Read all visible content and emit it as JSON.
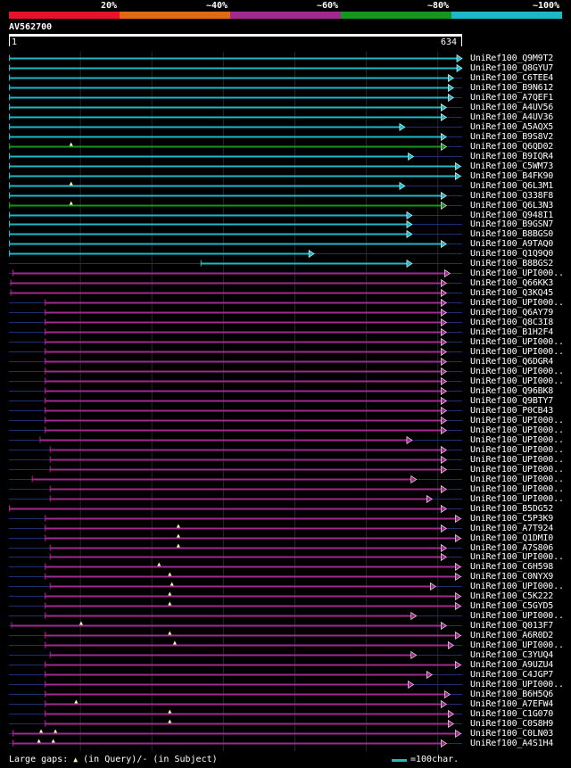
{
  "legend": {
    "bands": [
      {
        "label": "20%",
        "color": "#e8122d"
      },
      {
        "label": "~40%",
        "color": "#e06a13"
      },
      {
        "label": "~60%",
        "color": "#a2298e"
      },
      {
        "label": "~80%",
        "color": "#15971f"
      },
      {
        "label": "~100%",
        "color": "#1eb9c8"
      }
    ]
  },
  "query": {
    "id": "AV562700",
    "start_label": "1",
    "end_label": "634",
    "length": 634
  },
  "colors": {
    "cyan": "#1eb9c8",
    "green": "#15971f",
    "purple": "#a2298e",
    "gap_marker": "#ffffaa",
    "line": "#1c2f6e"
  },
  "hits": [
    {
      "name": "UniRef100_Q9M9T2",
      "color": "cyan",
      "start": 0,
      "end": 634,
      "gaps": []
    },
    {
      "name": "UniRef100_Q8GYU7",
      "color": "cyan",
      "start": 0,
      "end": 634,
      "gaps": []
    },
    {
      "name": "UniRef100_C6TEE4",
      "color": "cyan",
      "start": 0,
      "end": 622,
      "gaps": []
    },
    {
      "name": "UniRef100_B9N612",
      "color": "cyan",
      "start": 0,
      "end": 622,
      "gaps": []
    },
    {
      "name": "UniRef100_A7QEF1",
      "color": "cyan",
      "start": 0,
      "end": 622,
      "gaps": []
    },
    {
      "name": "UniRef100_A4UV56",
      "color": "cyan",
      "start": 0,
      "end": 612,
      "gaps": []
    },
    {
      "name": "UniRef100_A4UV36",
      "color": "cyan",
      "start": 0,
      "end": 612,
      "gaps": []
    },
    {
      "name": "UniRef100_A5AQX5",
      "color": "cyan",
      "start": 0,
      "end": 554,
      "gaps": []
    },
    {
      "name": "UniRef100_B9S8V2",
      "color": "cyan",
      "start": 0,
      "end": 612,
      "gaps": []
    },
    {
      "name": "UniRef100_Q6QD02",
      "color": "green",
      "start": 0,
      "end": 612,
      "gaps": [
        87
      ]
    },
    {
      "name": "UniRef100_B9IQR4",
      "color": "cyan",
      "start": 0,
      "end": 566,
      "gaps": []
    },
    {
      "name": "UniRef100_C5WM73",
      "color": "cyan",
      "start": 0,
      "end": 632,
      "gaps": []
    },
    {
      "name": "UniRef100_B4FK90",
      "color": "cyan",
      "start": 0,
      "end": 632,
      "gaps": []
    },
    {
      "name": "UniRef100_Q6L3M1",
      "color": "cyan",
      "start": 0,
      "end": 554,
      "gaps": [
        87
      ]
    },
    {
      "name": "UniRef100_Q338F8",
      "color": "cyan",
      "start": 0,
      "end": 612,
      "gaps": []
    },
    {
      "name": "UniRef100_Q6L3N3",
      "color": "green",
      "start": 0,
      "end": 612,
      "gaps": [
        87
      ]
    },
    {
      "name": "UniRef100_Q948I1",
      "color": "cyan",
      "start": 0,
      "end": 564,
      "gaps": []
    },
    {
      "name": "UniRef100_B9GSN7",
      "color": "cyan",
      "start": 0,
      "end": 564,
      "gaps": []
    },
    {
      "name": "UniRef100_B8BGS0",
      "color": "cyan",
      "start": 0,
      "end": 564,
      "gaps": []
    },
    {
      "name": "UniRef100_A9TAQ0",
      "color": "cyan",
      "start": 0,
      "end": 612,
      "gaps": []
    },
    {
      "name": "UniRef100_Q1Q9Q0",
      "color": "cyan",
      "start": 0,
      "end": 427,
      "gaps": []
    },
    {
      "name": "UniRef100_B8BGS2",
      "color": "cyan",
      "start": 268,
      "end": 564,
      "gaps": []
    },
    {
      "name": "UniRef100_UPI000..",
      "color": "purple",
      "start": 5,
      "end": 617,
      "gaps": []
    },
    {
      "name": "UniRef100_Q66KK3",
      "color": "purple",
      "start": 2,
      "end": 612,
      "gaps": []
    },
    {
      "name": "UniRef100_Q3KQ45",
      "color": "purple",
      "start": 2,
      "end": 612,
      "gaps": []
    },
    {
      "name": "UniRef100_UPI000..",
      "color": "purple",
      "start": 50,
      "end": 612,
      "gaps": []
    },
    {
      "name": "UniRef100_Q6AY79",
      "color": "purple",
      "start": 50,
      "end": 612,
      "gaps": []
    },
    {
      "name": "UniRef100_Q8C3I8",
      "color": "purple",
      "start": 50,
      "end": 612,
      "gaps": []
    },
    {
      "name": "UniRef100_B1H2F4",
      "color": "purple",
      "start": 50,
      "end": 612,
      "gaps": []
    },
    {
      "name": "UniRef100_UPI000..",
      "color": "purple",
      "start": 50,
      "end": 612,
      "gaps": []
    },
    {
      "name": "UniRef100_UPI000..",
      "color": "purple",
      "start": 50,
      "end": 612,
      "gaps": []
    },
    {
      "name": "UniRef100_Q6DGR4",
      "color": "purple",
      "start": 50,
      "end": 612,
      "gaps": []
    },
    {
      "name": "UniRef100_UPI000..",
      "color": "purple",
      "start": 50,
      "end": 612,
      "gaps": []
    },
    {
      "name": "UniRef100_UPI000..",
      "color": "purple",
      "start": 50,
      "end": 612,
      "gaps": []
    },
    {
      "name": "UniRef100_Q96BK8",
      "color": "purple",
      "start": 50,
      "end": 612,
      "gaps": []
    },
    {
      "name": "UniRef100_Q9BTY7",
      "color": "purple",
      "start": 50,
      "end": 612,
      "gaps": []
    },
    {
      "name": "UniRef100_P0CB43",
      "color": "purple",
      "start": 50,
      "end": 612,
      "gaps": []
    },
    {
      "name": "UniRef100_UPI000..",
      "color": "purple",
      "start": 50,
      "end": 612,
      "gaps": []
    },
    {
      "name": "UniRef100_UPI000..",
      "color": "purple",
      "start": 50,
      "end": 612,
      "gaps": []
    },
    {
      "name": "UniRef100_UPI000..",
      "color": "purple",
      "start": 43,
      "end": 564,
      "gaps": []
    },
    {
      "name": "UniRef100_UPI000..",
      "color": "purple",
      "start": 57,
      "end": 612,
      "gaps": []
    },
    {
      "name": "UniRef100_UPI000..",
      "color": "purple",
      "start": 57,
      "end": 612,
      "gaps": []
    },
    {
      "name": "UniRef100_UPI000..",
      "color": "purple",
      "start": 57,
      "end": 612,
      "gaps": []
    },
    {
      "name": "UniRef100_UPI000..",
      "color": "purple",
      "start": 32,
      "end": 570,
      "gaps": []
    },
    {
      "name": "UniRef100_UPI000..",
      "color": "purple",
      "start": 57,
      "end": 612,
      "gaps": []
    },
    {
      "name": "UniRef100_UPI000..",
      "color": "purple",
      "start": 57,
      "end": 592,
      "gaps": []
    },
    {
      "name": "UniRef100_B5DG52",
      "color": "purple",
      "start": 0,
      "end": 612,
      "gaps": []
    },
    {
      "name": "UniRef100_C5P3K9",
      "color": "purple",
      "start": 50,
      "end": 632,
      "gaps": []
    },
    {
      "name": "UniRef100_A7T924",
      "color": "purple",
      "start": 50,
      "end": 612,
      "gaps": [
        237
      ]
    },
    {
      "name": "UniRef100_Q1DMI0",
      "color": "purple",
      "start": 50,
      "end": 632,
      "gaps": [
        237
      ]
    },
    {
      "name": "UniRef100_A7S806",
      "color": "purple",
      "start": 57,
      "end": 612,
      "gaps": [
        237
      ]
    },
    {
      "name": "UniRef100_UPI000..",
      "color": "purple",
      "start": 57,
      "end": 612,
      "gaps": []
    },
    {
      "name": "UniRef100_C6H598",
      "color": "purple",
      "start": 50,
      "end": 632,
      "gaps": [
        210
      ]
    },
    {
      "name": "UniRef100_C0NYX9",
      "color": "purple",
      "start": 50,
      "end": 632,
      "gaps": [
        225
      ]
    },
    {
      "name": "UniRef100_UPI000..",
      "color": "purple",
      "start": 57,
      "end": 597,
      "gaps": [
        228
      ]
    },
    {
      "name": "UniRef100_C5K222",
      "color": "purple",
      "start": 50,
      "end": 632,
      "gaps": [
        225
      ]
    },
    {
      "name": "UniRef100_C5GYD5",
      "color": "purple",
      "start": 50,
      "end": 632,
      "gaps": [
        225
      ]
    },
    {
      "name": "UniRef100_UPI000..",
      "color": "purple",
      "start": 50,
      "end": 570,
      "gaps": []
    },
    {
      "name": "UniRef100_Q013F7",
      "color": "purple",
      "start": 3,
      "end": 612,
      "gaps": [
        101
      ]
    },
    {
      "name": "UniRef100_A6R0D2",
      "color": "purple",
      "start": 50,
      "end": 632,
      "gaps": [
        225
      ]
    },
    {
      "name": "UniRef100_UPI000..",
      "color": "purple",
      "start": 50,
      "end": 622,
      "gaps": [
        232
      ]
    },
    {
      "name": "UniRef100_C3YUQ4",
      "color": "purple",
      "start": 57,
      "end": 570,
      "gaps": []
    },
    {
      "name": "UniRef100_A9UZU4",
      "color": "purple",
      "start": 50,
      "end": 632,
      "gaps": []
    },
    {
      "name": "UniRef100_C4JGP7",
      "color": "purple",
      "start": 50,
      "end": 592,
      "gaps": []
    },
    {
      "name": "UniRef100_UPI000..",
      "color": "purple",
      "start": 50,
      "end": 566,
      "gaps": []
    },
    {
      "name": "UniRef100_B6H5Q6",
      "color": "purple",
      "start": 50,
      "end": 617,
      "gaps": []
    },
    {
      "name": "UniRef100_A7EFW4",
      "color": "purple",
      "start": 50,
      "end": 612,
      "gaps": [
        94
      ]
    },
    {
      "name": "UniRef100_C1G070",
      "color": "purple",
      "start": 50,
      "end": 622,
      "gaps": [
        225
      ]
    },
    {
      "name": "UniRef100_C0S8H9",
      "color": "purple",
      "start": 50,
      "end": 622,
      "gaps": [
        225
      ]
    },
    {
      "name": "UniRef100_C0LN03",
      "color": "purple",
      "start": 5,
      "end": 632,
      "gaps": [
        45,
        65
      ]
    },
    {
      "name": "UniRef100_A4S1H4",
      "color": "purple",
      "start": 5,
      "end": 612,
      "gaps": [
        42,
        62
      ]
    }
  ],
  "footer": {
    "large_gaps_label": "Large gaps:",
    "in_query_label": "(in Query)/- (in Subject)",
    "scale_label": "=100char."
  }
}
